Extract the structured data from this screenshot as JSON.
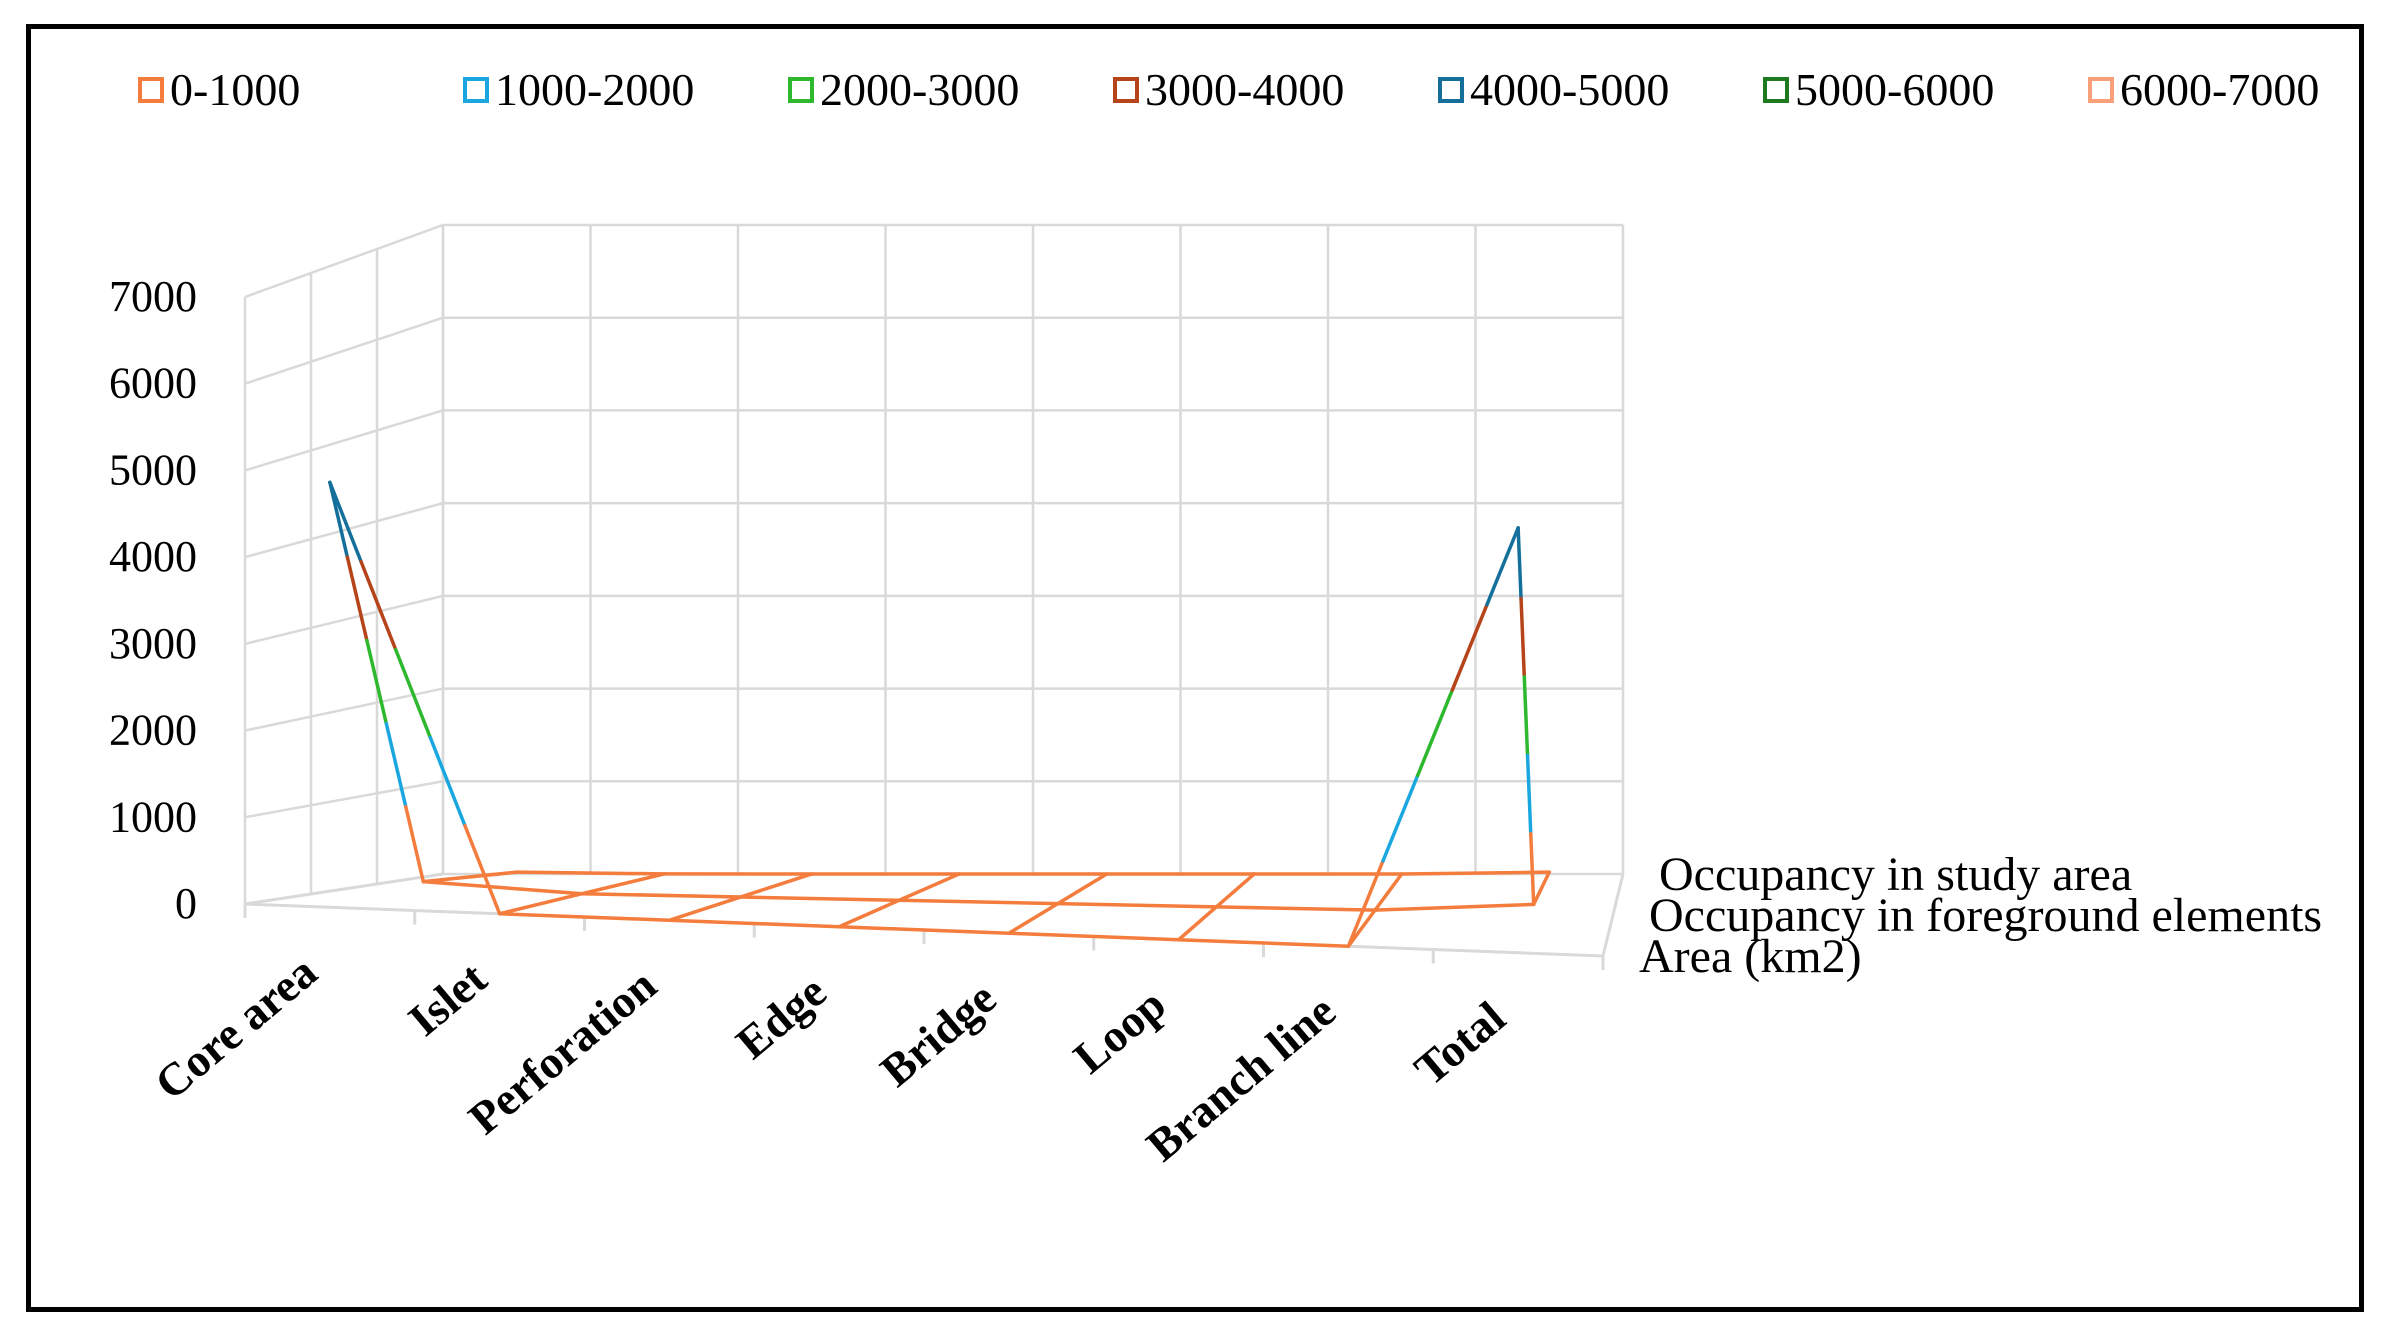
{
  "chart_data": {
    "type": "line",
    "title": "",
    "categories": [
      "Core area",
      "Islet",
      "Perforation",
      "Edge",
      "Bridge",
      "Loop",
      "Branch line",
      "Total"
    ],
    "depth_categories": [
      "Area (km2)",
      "Occupancy in foreground elements",
      "Occupancy in study area"
    ],
    "ylim": [
      0,
      7000
    ],
    "y_ticks": [
      "0",
      "1000",
      "2000",
      "3000",
      "4000",
      "5000",
      "6000",
      "7000"
    ],
    "grid": true,
    "legend_position": "top",
    "legend": [
      {
        "label": "0-1000",
        "color": "#f47c3c"
      },
      {
        "label": "1000-2000",
        "color": "#1aa7e0"
      },
      {
        "label": "2000-3000",
        "color": "#2db82d"
      },
      {
        "label": "3000-4000",
        "color": "#b5441a"
      },
      {
        "label": "4000-5000",
        "color": "#14709a"
      },
      {
        "label": "5000-6000",
        "color": "#1f7a1f"
      },
      {
        "label": "6000-7000",
        "color": "#f9a07a"
      }
    ],
    "series": [
      {
        "name": "Area (km2)",
        "values": [
          4900,
          0,
          0,
          0,
          0,
          0,
          0,
          4900
        ]
      },
      {
        "name": "Occupancy in foreground elements",
        "values": [
          100,
          2,
          1,
          1,
          0.5,
          0.5,
          0.1,
          100
        ]
      },
      {
        "name": "Occupancy in study area",
        "values": [
          20,
          1,
          0.5,
          0.5,
          0.2,
          0.2,
          0.1,
          20
        ]
      }
    ]
  }
}
